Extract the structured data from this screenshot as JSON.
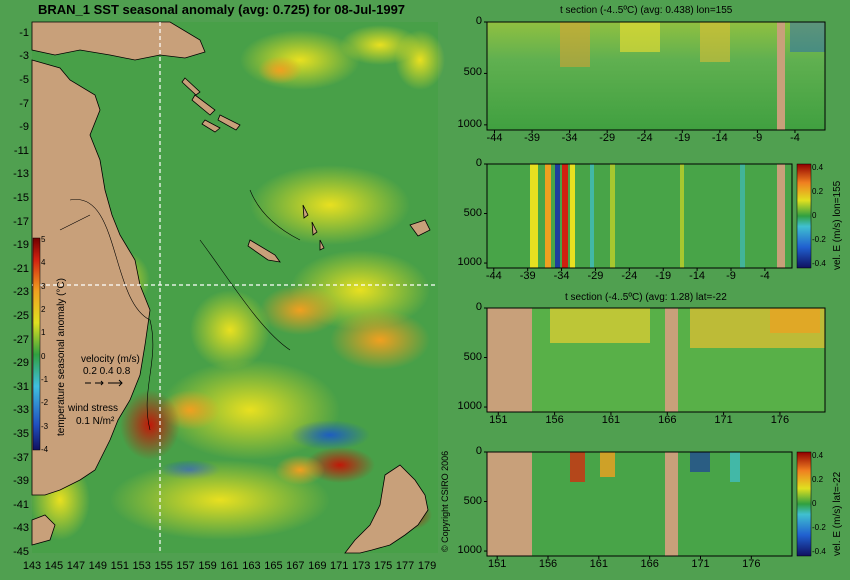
{
  "chart_data": [
    {
      "type": "heatmap",
      "title": "BRAN_1  SST seasonal anomaly (avg: 0.725) for 08-Jul-1997",
      "y_ticks": [
        "-1",
        "-3",
        "-5",
        "-7",
        "-9",
        "-11",
        "-13",
        "-15",
        "-17",
        "-19",
        "-21",
        "-23",
        "-25",
        "-27",
        "-29",
        "-31",
        "-33",
        "-35",
        "-37",
        "-39",
        "-41",
        "-43",
        "-45"
      ],
      "x_ticks": [
        "143",
        "145",
        "147",
        "149",
        "151",
        "153",
        "155",
        "157",
        "159",
        "161",
        "163",
        "165",
        "167",
        "169",
        "171",
        "173",
        "175",
        "177",
        "179"
      ],
      "xlim": [
        143,
        180
      ],
      "ylim": [
        -45,
        0
      ],
      "colorbar": {
        "label": "temperature seasonal anomaly (°C)",
        "ticks": [
          "5",
          "4",
          "3",
          "2",
          "1",
          "0",
          "-1",
          "-2",
          "-3",
          "-4"
        ],
        "range": [
          -4,
          5
        ]
      },
      "velocity_legend": {
        "label": "velocity (m/s)",
        "values": "0.2 0.4 0.8"
      },
      "wind_legend": {
        "label": "wind stress",
        "value": "0.1 N/m²"
      },
      "section_lines": {
        "lon": 155,
        "lat": -22
      },
      "copyright": "© Copyright CSIRO 2006"
    },
    {
      "type": "heatmap",
      "title": "t section (-4..5ºC) (avg: 0.438) lon=155",
      "x_ticks": [
        "-44",
        "-39",
        "-34",
        "-29",
        "-24",
        "-19",
        "-14",
        "-9",
        "-4"
      ],
      "y_ticks": [
        "0",
        "500",
        "1000"
      ],
      "xlim": [
        -45,
        0
      ],
      "ylim": [
        1050,
        0
      ]
    },
    {
      "type": "heatmap",
      "title": "",
      "x_ticks": [
        "-44",
        "-39",
        "-34",
        "-29",
        "-24",
        "-19",
        "-14",
        "-9",
        "-4"
      ],
      "y_ticks": [
        "0",
        "500",
        "1000"
      ],
      "xlim": [
        -45,
        0
      ],
      "ylim": [
        1050,
        0
      ],
      "colorbar": {
        "label": "vel. E (m/s) lon=155",
        "ticks": [
          "0.4",
          "0.2",
          "0",
          "-0.2",
          "-0.4"
        ],
        "range": [
          -0.4,
          0.4
        ]
      }
    },
    {
      "type": "heatmap",
      "title": "t section (-4..5ºC) (avg: 1.28) lat=-22",
      "x_ticks": [
        "151",
        "156",
        "161",
        "166",
        "171",
        "176"
      ],
      "y_ticks": [
        "0",
        "500",
        "1000"
      ],
      "xlim": [
        150,
        180
      ],
      "ylim": [
        1050,
        0
      ]
    },
    {
      "type": "heatmap",
      "title": "",
      "x_ticks": [
        "151",
        "156",
        "161",
        "166",
        "171",
        "176"
      ],
      "y_ticks": [
        "0",
        "500",
        "1000"
      ],
      "xlim": [
        150,
        180
      ],
      "ylim": [
        1050,
        0
      ],
      "colorbar": {
        "label": "vel. E (m/s) lat=-22",
        "ticks": [
          "0.4",
          "0.2",
          "0",
          "-0.2",
          "-0.4"
        ],
        "range": [
          -0.4,
          0.4
        ]
      }
    }
  ],
  "colors": {
    "background": "#50a050",
    "land": "#c8a07a",
    "anomaly_ramp": [
      "#1a2a8c",
      "#2f7fd0",
      "#7ae0c8",
      "#3aa83a",
      "#e8e020",
      "#f0a020",
      "#d02010",
      "#800000"
    ]
  }
}
